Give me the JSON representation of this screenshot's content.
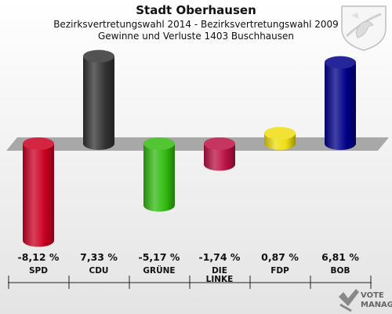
{
  "header": {
    "title": "Stadt Oberhausen",
    "subtitle1": "Bezirksvertretungswahl 2014 - Bezirksvertretungswahl 2009",
    "subtitle2": "Gewinne und Verluste 1403 Buschhausen"
  },
  "logo": {
    "line1": "VOTE",
    "line2": "MANAGER"
  },
  "chart_data": {
    "type": "bar",
    "title": "Stadt Oberhausen",
    "subtitle": "Gewinne und Verluste 1403 Buschhausen",
    "categories": [
      "SPD",
      "CDU",
      "GRÜNE",
      "DIE LINKE",
      "FDP",
      "BOB"
    ],
    "category_lines": [
      [
        "SPD"
      ],
      [
        "CDU"
      ],
      [
        "GRÜNE"
      ],
      [
        "DIE",
        "LINKE"
      ],
      [
        "FDP"
      ],
      [
        "BOB"
      ]
    ],
    "values": [
      -8.12,
      7.33,
      -5.17,
      -1.74,
      0.87,
      6.81
    ],
    "value_labels": [
      "-8,12 %",
      "7,33 %",
      "-5,17 %",
      "-1,74 %",
      "0,87 %",
      "6,81 %"
    ],
    "colors": [
      "#cc0022",
      "#333333",
      "#33bb11",
      "#bb1144",
      "#eedd11",
      "#000088"
    ],
    "ylim": [
      -9,
      9
    ],
    "xlabel": "",
    "ylabel": ""
  }
}
